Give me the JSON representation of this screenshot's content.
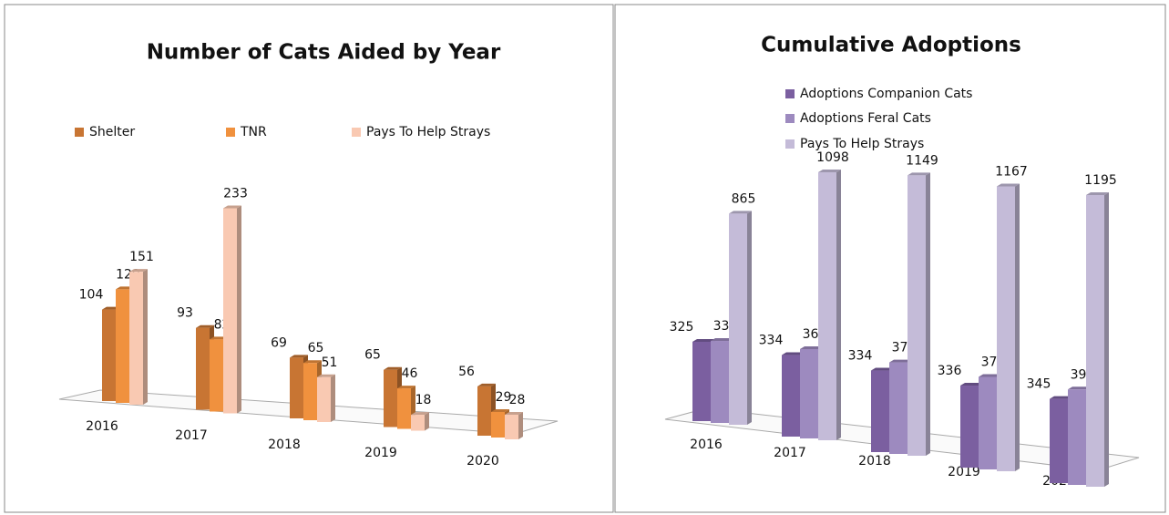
{
  "chart_data": [
    {
      "type": "bar3d",
      "title": "Number of Cats Aided by Year",
      "categories": [
        "2016",
        "2017",
        "2018",
        "2019",
        "2020"
      ],
      "series": [
        {
          "name": "Shelter",
          "color": "#c87533",
          "values": [
            104,
            93,
            69,
            65,
            56
          ]
        },
        {
          "name": "TNR",
          "color": "#f0913e",
          "values": [
            129,
            82,
            65,
            46,
            29
          ]
        },
        {
          "name": "Pays To Help Strays",
          "color": "#f9c9b2",
          "values": [
            151,
            233,
            51,
            18,
            28
          ]
        }
      ],
      "legend": "top"
    },
    {
      "type": "bar3d",
      "title": "Cumulative Adoptions",
      "categories": [
        "2016",
        "2017",
        "2018",
        "2019",
        "2020"
      ],
      "series": [
        {
          "name": "Adoptions Companion Cats",
          "color": "#7b5fa0",
          "values": [
            325,
            334,
            334,
            336,
            345
          ]
        },
        {
          "name": "Adoptions Feral Cats",
          "color": "#9d8abf",
          "values": [
            336,
            366,
            375,
            379,
            391
          ]
        },
        {
          "name": "Pays To Help Strays",
          "color": "#c4bbd8",
          "values": [
            865,
            1098,
            1149,
            1167,
            1195
          ]
        }
      ],
      "legend": "top"
    }
  ]
}
